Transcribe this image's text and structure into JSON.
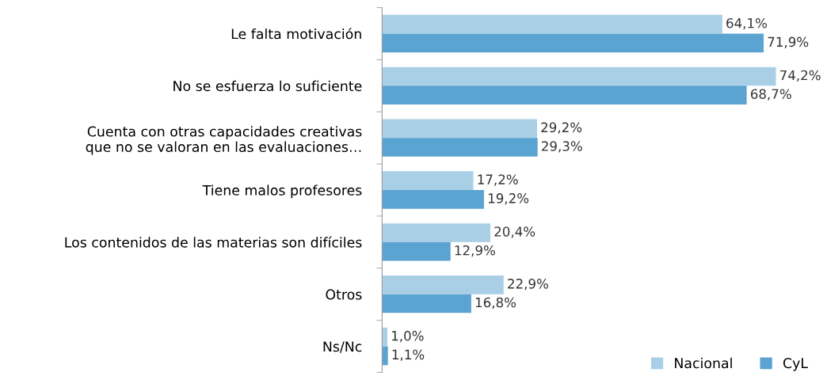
{
  "chart_data": {
    "type": "bar",
    "orientation": "horizontal",
    "categories": [
      "Le falta motivación",
      "No se esfuerza lo suficiente",
      "Cuenta con otras capacidades creativas\nque no se valoran en las evaluaciones…",
      "Tiene malos profesores",
      "Los contenidos de las materias son difíciles",
      "Otros",
      "Ns/Nc"
    ],
    "series": [
      {
        "name": "Nacional",
        "color": "#a9cfe6",
        "values": [
          64.1,
          74.2,
          29.2,
          17.2,
          20.4,
          22.9,
          1.0
        ],
        "value_labels": [
          "64,1%",
          "74,2%",
          "29,2%",
          "17,2%",
          "20,4%",
          "22,9%",
          "1,0%"
        ]
      },
      {
        "name": "CyL",
        "color": "#5ba3d0",
        "values": [
          71.9,
          68.7,
          29.3,
          19.2,
          12.9,
          16.8,
          1.1
        ],
        "value_labels": [
          "71,9%",
          "68,7%",
          "29,3%",
          "19,2%",
          "12,9%",
          "16,8%",
          "1,1%"
        ]
      }
    ],
    "legend": "bottom right",
    "grid": false,
    "tick_labels": "y"
  }
}
